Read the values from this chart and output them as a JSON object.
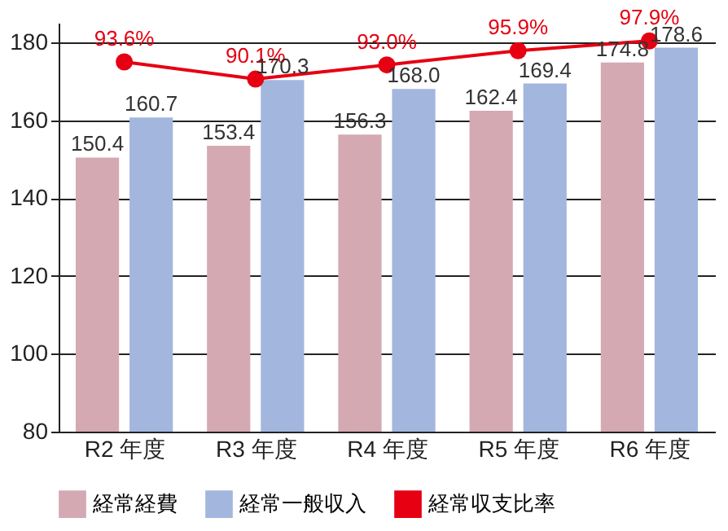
{
  "chart_data": {
    "type": "bar",
    "categories": [
      "R2 年度",
      "R3 年度",
      "R4 年度",
      "R5 年度",
      "R6 年度"
    ],
    "series": [
      {
        "name": "経常経費",
        "color": "#d4a9b1",
        "values": [
          150.4,
          153.4,
          156.3,
          162.4,
          174.8
        ],
        "value_labels": [
          "150.4",
          "153.4",
          "156.3",
          "162.4",
          "174.8"
        ]
      },
      {
        "name": "経常一般収入",
        "color": "#a3b6de",
        "values": [
          160.7,
          170.3,
          168.0,
          169.4,
          178.6
        ],
        "value_labels": [
          "160.7",
          "170.3",
          "168.0",
          "169.4",
          "178.6"
        ]
      },
      {
        "name": "経常収支比率",
        "type": "line",
        "axis": "y2",
        "color": "#e60012",
        "values": [
          93.6,
          90.1,
          93.0,
          95.9,
          97.9
        ],
        "value_labels": [
          "93.6%",
          "90.1%",
          "93.0%",
          "95.9%",
          "97.9%"
        ]
      }
    ],
    "ylim": [
      80,
      185
    ],
    "yticks": [
      80,
      100,
      120,
      140,
      160,
      180
    ],
    "y2lim": [
      18,
      101.6
    ],
    "grid": "y",
    "legend": "bottom",
    "marker": "circle",
    "line_style": "solid"
  }
}
